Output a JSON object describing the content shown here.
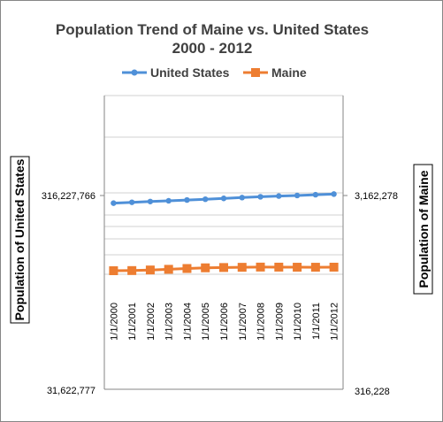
{
  "chart_data": {
    "type": "line",
    "title": "Population Trend of Maine vs. United States",
    "subtitle": "2000 - 2012",
    "x": [
      "1/1/2000",
      "1/1/2001",
      "1/1/2002",
      "1/1/2003",
      "1/1/2004",
      "1/1/2005",
      "1/1/2006",
      "1/1/2007",
      "1/1/2008",
      "1/1/2009",
      "1/1/2010",
      "1/1/2011",
      "1/1/2012"
    ],
    "left_axis": {
      "label": "Population of United States",
      "scale": "log",
      "ylim": [
        31622777,
        1000000000
      ],
      "tick_labels": [
        "31,622,777",
        "316,227,766"
      ]
    },
    "right_axis": {
      "label": "Population of Maine",
      "scale": "log",
      "ylim": [
        316228,
        10000000
      ],
      "tick_labels": [
        "316,228",
        "3,162,278"
      ]
    },
    "series": [
      {
        "name": "United States",
        "axis": "left",
        "color": "#4F90D8",
        "marker": "circle",
        "values": [
          282162411,
          284968955,
          287625193,
          290107933,
          292805643,
          295516599,
          298379912,
          301231207,
          304093966,
          306771529,
          308745538,
          311591917,
          313914040
        ]
      },
      {
        "name": "Maine",
        "axis": "right",
        "color": "#ED7D31",
        "marker": "square",
        "values": [
          1274923,
          1277072,
          1285692,
          1295960,
          1308253,
          1318787,
          1323619,
          1327040,
          1330509,
          1329590,
          1328361,
          1328188,
          1329192
        ]
      }
    ],
    "legend": "top",
    "grid": true
  }
}
